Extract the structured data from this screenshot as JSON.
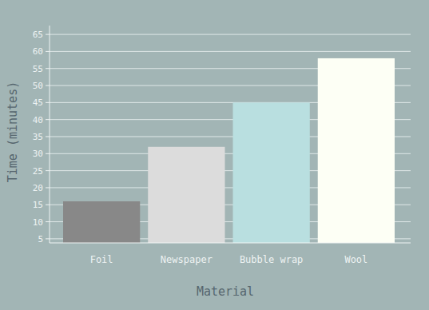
{
  "chart_data": {
    "type": "bar",
    "x_label": "Material",
    "y_label": "Time (minutes)",
    "categories": [
      "Foil",
      "Newspaper",
      "Bubble wrap",
      "Wool"
    ],
    "values": [
      16,
      32,
      45,
      58
    ],
    "colors": [
      "#888888",
      "#dcdcdc",
      "#b9dfe0",
      "#fdfff5"
    ],
    "ylim": [
      3.8,
      67.6
    ],
    "yticks": [
      5,
      10,
      15,
      20,
      25,
      30,
      35,
      40,
      45,
      50,
      55,
      60,
      65
    ],
    "grid": true
  }
}
